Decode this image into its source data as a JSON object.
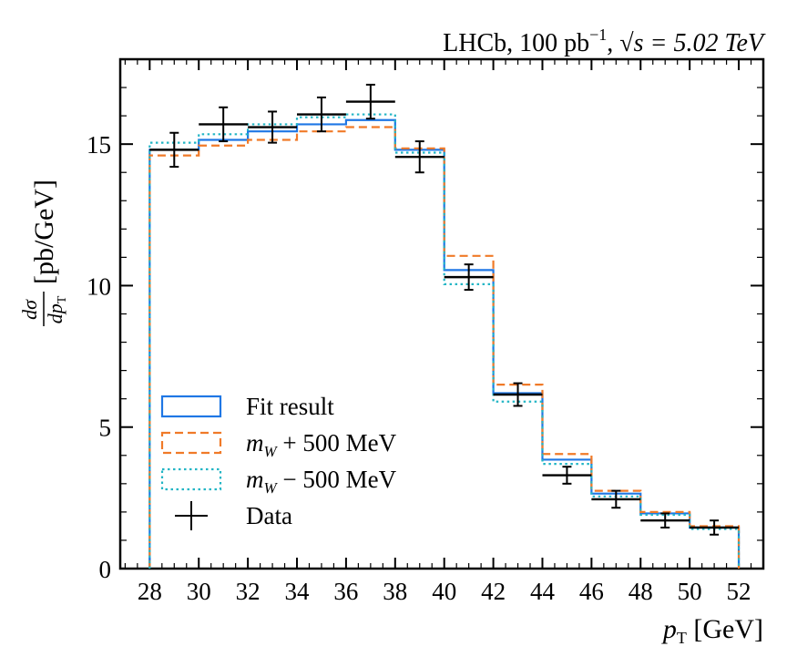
{
  "chart_data": {
    "type": "step-histogram",
    "title": {
      "prefix": "LHCb, 100 pb",
      "superscript": "−1",
      "sqrt_s_label": "√s = 5.02 TeV"
    },
    "xlabel": {
      "symbol": "p",
      "subscript": "T",
      "unit": " [GeV]"
    },
    "ylabel": {
      "numerator": "dσ",
      "denominator": "dp",
      "denominator_subscript": "T",
      "unit": " [pb/GeV]"
    },
    "xlim": [
      26.8,
      53.0
    ],
    "ylim": [
      0,
      18.0
    ],
    "x_ticks": [
      28,
      30,
      32,
      34,
      36,
      38,
      40,
      42,
      44,
      46,
      48,
      50,
      52
    ],
    "y_ticks": [
      0,
      5,
      10,
      15
    ],
    "bin_edges": [
      28,
      30,
      32,
      34,
      36,
      38,
      40,
      42,
      44,
      46,
      48,
      50,
      52
    ],
    "series": [
      {
        "name": "Fit result",
        "style": "solid",
        "color": "#1f77e5",
        "values": [
          14.8,
          15.15,
          15.45,
          15.7,
          15.85,
          14.8,
          10.55,
          6.2,
          3.85,
          2.65,
          1.95,
          1.45
        ]
      },
      {
        "name": "m_W + 500 MeV",
        "style": "dashed",
        "color": "#f07a28",
        "values": [
          14.6,
          14.95,
          15.15,
          15.45,
          15.6,
          14.85,
          11.05,
          6.5,
          4.05,
          2.75,
          2.0,
          1.5
        ]
      },
      {
        "name": "m_W − 500 MeV",
        "style": "dotted",
        "color": "#22b5c5",
        "values": [
          15.05,
          15.35,
          15.7,
          15.95,
          16.05,
          14.7,
          10.05,
          5.9,
          3.7,
          2.55,
          1.9,
          1.4
        ]
      }
    ],
    "data": {
      "name": "Data",
      "color": "#000000",
      "x": [
        29,
        31,
        33,
        35,
        37,
        39,
        41,
        43,
        45,
        47,
        49,
        51
      ],
      "y": [
        14.8,
        15.7,
        15.6,
        16.05,
        16.5,
        14.55,
        10.3,
        6.15,
        3.3,
        2.45,
        1.7,
        1.45
      ],
      "yerr": [
        0.6,
        0.6,
        0.55,
        0.6,
        0.6,
        0.55,
        0.45,
        0.4,
        0.3,
        0.3,
        0.25,
        0.25
      ],
      "xerr": 1.0
    },
    "legend": {
      "placement": "lower-left",
      "entries": [
        {
          "prefix": "Fit result",
          "suffix": ""
        },
        {
          "prefix": "m",
          "sub": "W",
          "suffix": " + 500 MeV"
        },
        {
          "prefix": "m",
          "sub": "W",
          "suffix": " − 500 MeV"
        },
        {
          "prefix": "Data",
          "suffix": ""
        }
      ]
    }
  }
}
